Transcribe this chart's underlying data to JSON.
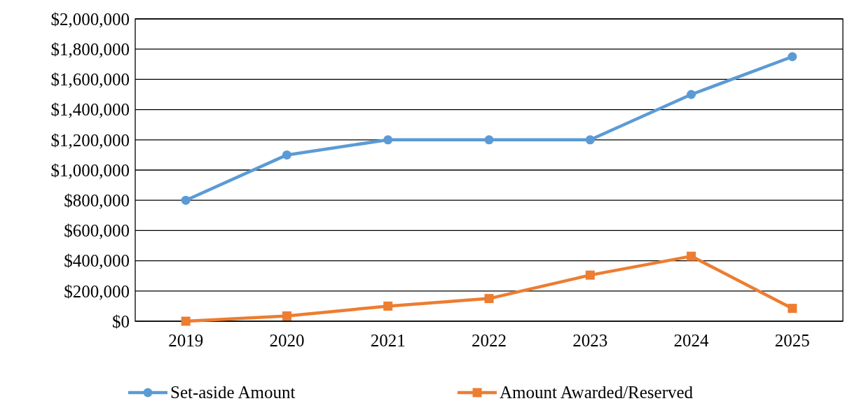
{
  "chart_data": {
    "type": "line",
    "categories": [
      "2019",
      "2020",
      "2021",
      "2022",
      "2023",
      "2024",
      "2025"
    ],
    "series": [
      {
        "name": "Set-aside Amount",
        "color": "#5b9bd5",
        "marker": "circle",
        "values": [
          800000,
          1100000,
          1200000,
          1200000,
          1200000,
          1500000,
          1750000
        ]
      },
      {
        "name": "Amount Awarded/Reserved",
        "color": "#ed7d31",
        "marker": "square",
        "values": [
          0,
          35000,
          100000,
          150000,
          305000,
          430000,
          85000
        ]
      }
    ],
    "ylim": [
      0,
      2000000
    ],
    "yticks": [
      {
        "value": 0,
        "label": "$0"
      },
      {
        "value": 200000,
        "label": "$200,000"
      },
      {
        "value": 400000,
        "label": "$400,000"
      },
      {
        "value": 600000,
        "label": "$600,000"
      },
      {
        "value": 800000,
        "label": "$800,000"
      },
      {
        "value": 1000000,
        "label": "$1,000,000"
      },
      {
        "value": 1200000,
        "label": "$1,200,000"
      },
      {
        "value": 1400000,
        "label": "$1,400,000"
      },
      {
        "value": 1600000,
        "label": "$1,600,000"
      },
      {
        "value": 1800000,
        "label": "$1,800,000"
      },
      {
        "value": 2000000,
        "label": "$2,000,000"
      }
    ],
    "grid": "y",
    "legend": "bottom",
    "line_style": "solid"
  }
}
